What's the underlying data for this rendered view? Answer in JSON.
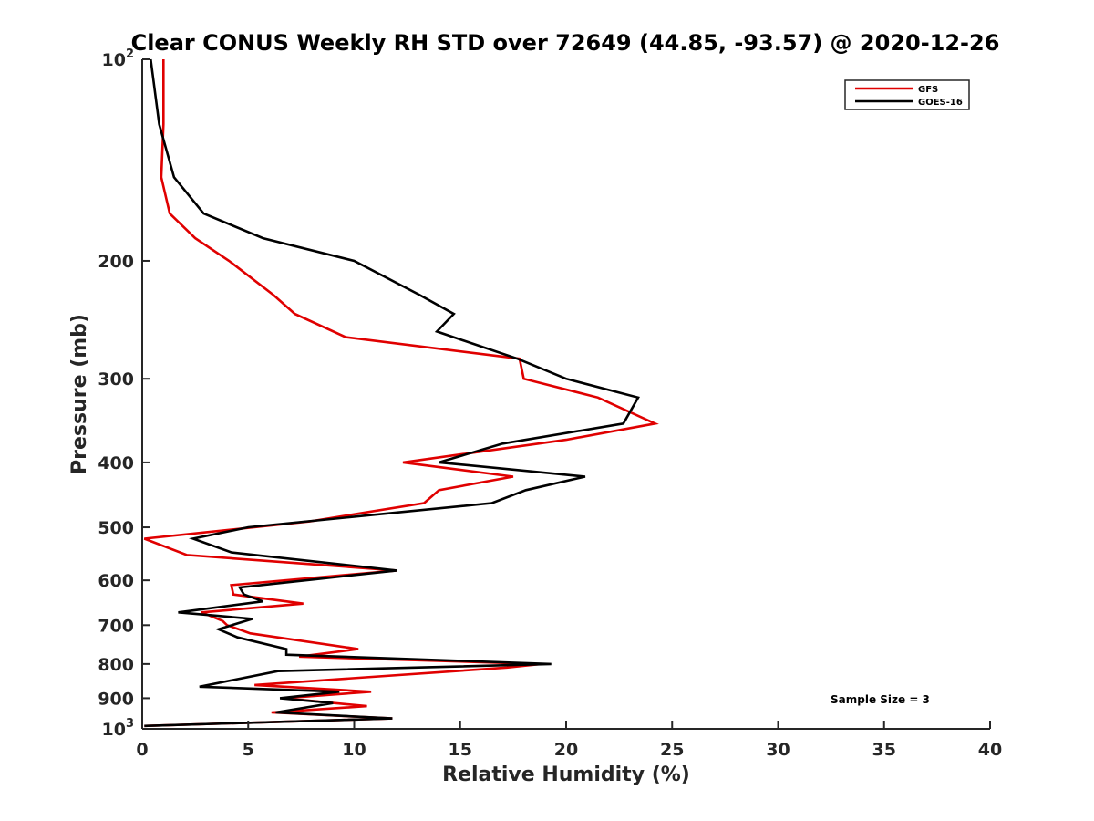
{
  "chart_data": {
    "type": "line",
    "title": "Clear CONUS Weekly RH STD over 72649 (44.85, -93.57) @ 2020-12-26",
    "xlabel": "Relative Humidity (%)",
    "ylabel": "Pressure (mb)",
    "xlim": [
      0,
      40
    ],
    "ylim": [
      100,
      1000
    ],
    "yscale": "log",
    "y_reversed": true,
    "x_ticks": [
      "0",
      "5",
      "10",
      "15",
      "20",
      "25",
      "30",
      "35",
      "40"
    ],
    "y_ticks": [
      {
        "value": 100,
        "base": "10",
        "exp": "2"
      },
      {
        "value": 200,
        "label": "200"
      },
      {
        "value": 300,
        "label": "300"
      },
      {
        "value": 400,
        "label": "400"
      },
      {
        "value": 500,
        "label": "500"
      },
      {
        "value": 600,
        "label": "600"
      },
      {
        "value": 700,
        "label": "700"
      },
      {
        "value": 800,
        "label": "800"
      },
      {
        "value": 900,
        "label": "900"
      },
      {
        "value": 1000,
        "base": "10",
        "exp": "3"
      }
    ],
    "grid": false,
    "legend_position": "top-right",
    "annotation": "Sample Size = 3",
    "series": [
      {
        "name": "GFS",
        "color": "#e00000",
        "points": [
          [
            1.0,
            100
          ],
          [
            1.0,
            125
          ],
          [
            0.9,
            150
          ],
          [
            1.3,
            170
          ],
          [
            2.5,
            185
          ],
          [
            4.1,
            200
          ],
          [
            6.2,
            225
          ],
          [
            7.2,
            240
          ],
          [
            9.6,
            260
          ],
          [
            17.8,
            280
          ],
          [
            18.0,
            300
          ],
          [
            21.5,
            320
          ],
          [
            24.2,
            350
          ],
          [
            20.0,
            370
          ],
          [
            12.3,
            400
          ],
          [
            17.5,
            420
          ],
          [
            14.0,
            440
          ],
          [
            13.3,
            460
          ],
          [
            7.9,
            490
          ],
          [
            0.1,
            520
          ],
          [
            2.1,
            550
          ],
          [
            12.0,
            580
          ],
          [
            4.2,
            610
          ],
          [
            4.3,
            630
          ],
          [
            7.6,
            650
          ],
          [
            2.8,
            670
          ],
          [
            3.8,
            690
          ],
          [
            4.0,
            700
          ],
          [
            5.1,
            720
          ],
          [
            10.2,
            760
          ],
          [
            7.4,
            780
          ],
          [
            18.8,
            800
          ],
          [
            17.2,
            810
          ],
          [
            5.3,
            860
          ],
          [
            10.8,
            880
          ],
          [
            6.7,
            900
          ],
          [
            10.6,
            925
          ],
          [
            6.1,
            945
          ],
          [
            11.8,
            965
          ],
          [
            0.1,
            990
          ]
        ]
      },
      {
        "name": "GOES-16",
        "color": "#000000",
        "points": [
          [
            0.4,
            100
          ],
          [
            0.8,
            125
          ],
          [
            1.5,
            150
          ],
          [
            2.9,
            170
          ],
          [
            5.7,
            185
          ],
          [
            10.0,
            200
          ],
          [
            13.1,
            225
          ],
          [
            14.7,
            240
          ],
          [
            13.9,
            255
          ],
          [
            17.7,
            280
          ],
          [
            20.0,
            300
          ],
          [
            23.4,
            320
          ],
          [
            22.7,
            350
          ],
          [
            17.0,
            375
          ],
          [
            14.0,
            400
          ],
          [
            20.9,
            420
          ],
          [
            18.1,
            440
          ],
          [
            16.5,
            460
          ],
          [
            5.0,
            500
          ],
          [
            2.4,
            520
          ],
          [
            4.2,
            545
          ],
          [
            12.0,
            580
          ],
          [
            4.6,
            615
          ],
          [
            4.8,
            630
          ],
          [
            5.7,
            645
          ],
          [
            1.7,
            670
          ],
          [
            5.2,
            685
          ],
          [
            3.6,
            710
          ],
          [
            4.5,
            730
          ],
          [
            6.8,
            760
          ],
          [
            6.8,
            775
          ],
          [
            19.3,
            800
          ],
          [
            6.4,
            820
          ],
          [
            2.7,
            865
          ],
          [
            9.3,
            880
          ],
          [
            6.5,
            900
          ],
          [
            9.0,
            915
          ],
          [
            6.3,
            945
          ],
          [
            11.8,
            965
          ],
          [
            0.1,
            990
          ]
        ]
      }
    ]
  }
}
